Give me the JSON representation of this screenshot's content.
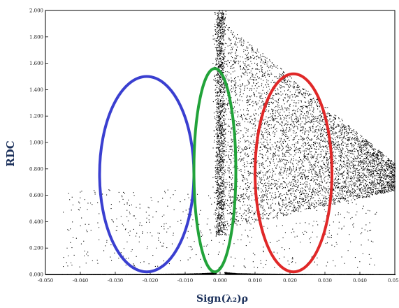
{
  "chart_data": {
    "type": "scatter",
    "xlabel": "Sign(λ₂)ρ",
    "ylabel": "RDC",
    "xlim": [
      -0.05,
      0.05
    ],
    "ylim": [
      0.0,
      2.0
    ],
    "x_ticks": [
      -0.05,
      -0.04,
      -0.03,
      -0.02,
      -0.01,
      0.0,
      0.01,
      0.02,
      0.03,
      0.04,
      0.05
    ],
    "x_tick_labels": [
      "-0.050",
      "-0.040",
      "-0.030",
      "-0.020",
      "-0.010",
      "0.000",
      "0.010",
      "0.020",
      "0.030",
      "0.040",
      "0.050"
    ],
    "y_ticks": [
      0.0,
      0.2,
      0.4,
      0.6,
      0.8,
      1.0,
      1.2,
      1.4,
      1.6,
      1.8,
      2.0
    ],
    "y_tick_labels": [
      "0.000",
      "0.200",
      "0.400",
      "0.600",
      "0.800",
      "1.000",
      "1.200",
      "1.400",
      "1.600",
      "1.800",
      "2.000"
    ],
    "point_color": "#000000",
    "grid": false,
    "annotations": [
      {
        "shape": "ellipse",
        "color": "#3a3fd0",
        "cx": -0.021,
        "cy": 0.76,
        "rx": 0.0135,
        "ry": 0.74
      },
      {
        "shape": "ellipse",
        "color": "#22a33a",
        "cx": -0.0015,
        "cy": 0.79,
        "rx": 0.006,
        "ry": 0.77
      },
      {
        "shape": "ellipse",
        "color": "#e02828",
        "cx": 0.021,
        "cy": 0.77,
        "rx": 0.011,
        "ry": 0.75
      }
    ]
  }
}
